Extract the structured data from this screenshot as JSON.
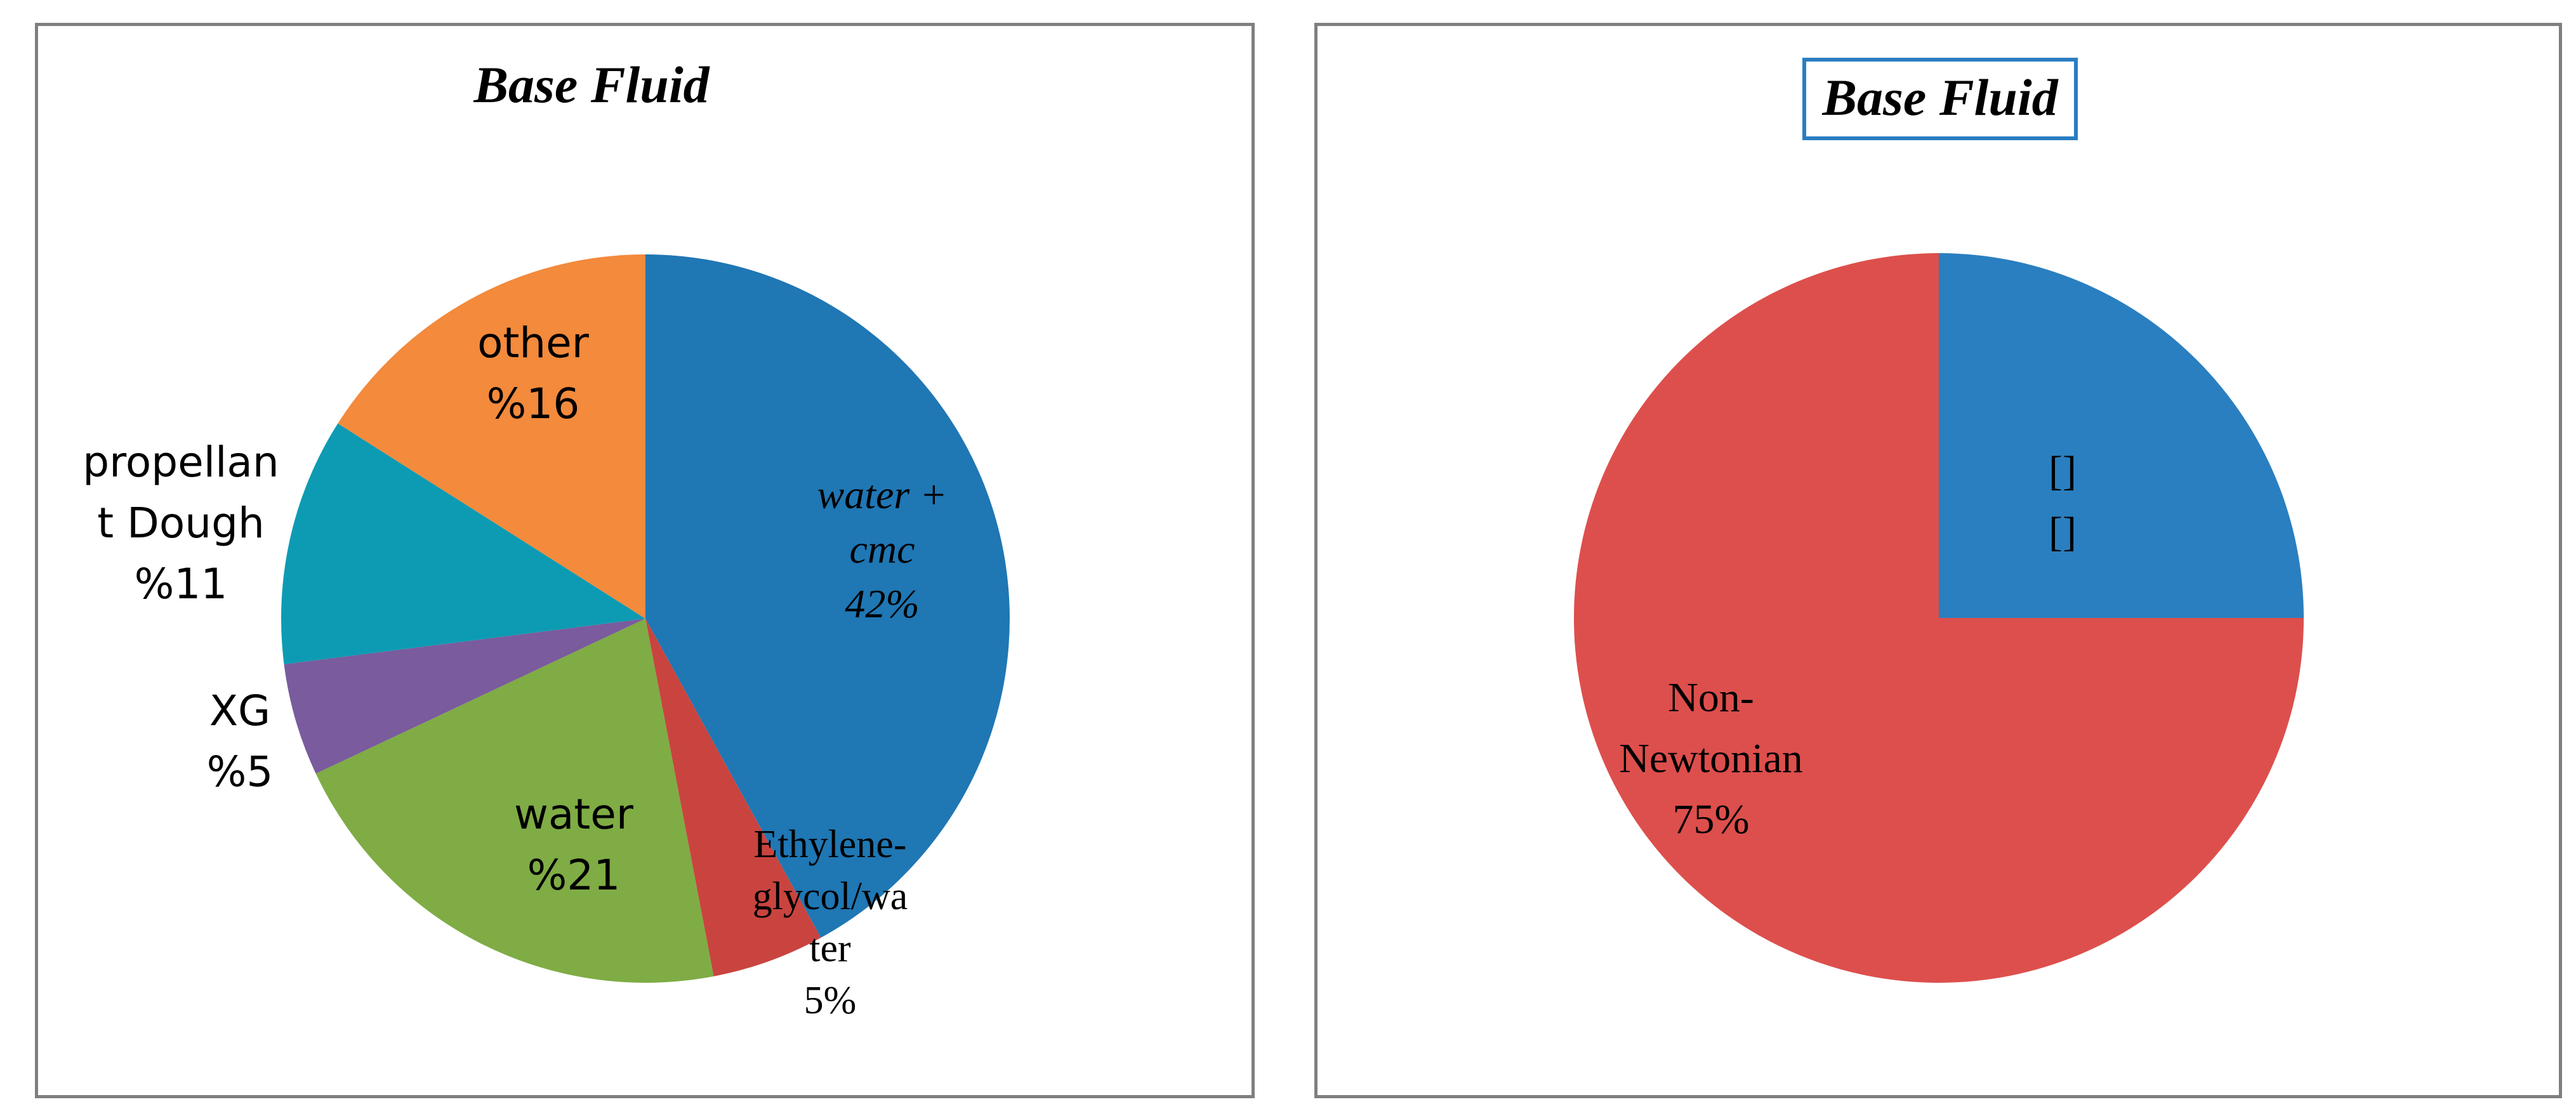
{
  "chart_data": [
    {
      "type": "pie",
      "title": "Base Fluid",
      "slices": [
        {
          "lines": [
            "water +",
            "cmc",
            "42%"
          ],
          "value": 42,
          "color": "#1f77b4",
          "label_style": "italic-serif"
        },
        {
          "lines": [
            "Ethylene-",
            "glycol/wa",
            "ter",
            "5%"
          ],
          "value": 5,
          "color": "#c9443f",
          "label_style": "serif"
        },
        {
          "lines": [
            "water",
            "%21"
          ],
          "value": 21,
          "color": "#7fac45",
          "label_style": "sans"
        },
        {
          "lines": [
            "XG",
            "%5"
          ],
          "value": 5,
          "color": "#7a5b9d",
          "label_style": "sans"
        },
        {
          "lines": [
            "propellan",
            "t Dough",
            "%11"
          ],
          "value": 11,
          "color": "#0d9bb3",
          "label_style": "sans"
        },
        {
          "lines": [
            "other",
            "%16"
          ],
          "value": 16,
          "color": "#f38a3c",
          "label_style": "sans"
        }
      ]
    },
    {
      "type": "pie",
      "title": "Base Fluid",
      "title_box_color": "#2a7dc1",
      "slices": [
        {
          "lines": [
            "[]",
            "[]"
          ],
          "value": 25,
          "color": "#2a7fc0",
          "label_style": "serif"
        },
        {
          "lines": [
            "Non-",
            "Newtonian",
            "75%"
          ],
          "value": 75,
          "color": "#dd4f4c",
          "label_style": "serif"
        }
      ]
    }
  ]
}
